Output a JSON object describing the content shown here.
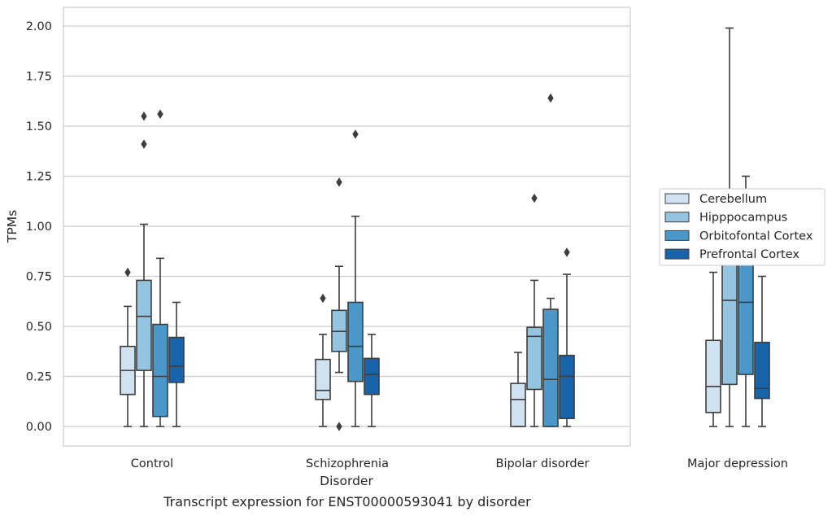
{
  "chart_data": {
    "type": "boxplot",
    "caption": "Transcript expression for ENST00000593041 by disorder",
    "xlabel": "Disorder",
    "ylabel": "TPMs",
    "ylim": [
      -0.1,
      2.1
    ],
    "yticks": [
      "0.00",
      "0.25",
      "0.50",
      "0.75",
      "1.00",
      "1.25",
      "1.50",
      "1.75",
      "2.00"
    ],
    "grid": "horizontal",
    "legend_position": "right",
    "categories": [
      "Control",
      "Schizophrenia",
      "Bipolar disorder",
      "Major depression"
    ],
    "series": [
      {
        "name": "Cerebellum",
        "color": "#d0e1f2",
        "boxes": [
          {
            "whisker_low": 0.0,
            "q1": 0.16,
            "median": 0.28,
            "q3": 0.4,
            "whisker_high": 0.6,
            "outliers": [
              0.77
            ]
          },
          {
            "whisker_low": 0.0,
            "q1": 0.135,
            "median": 0.18,
            "q3": 0.335,
            "whisker_high": 0.46,
            "outliers": [
              0.64
            ]
          },
          {
            "whisker_low": 0.0,
            "q1": 0.0,
            "median": 0.135,
            "q3": 0.215,
            "whisker_high": 0.37,
            "outliers": []
          },
          {
            "whisker_low": 0.0,
            "q1": 0.07,
            "median": 0.2,
            "q3": 0.43,
            "whisker_high": 0.77,
            "outliers": []
          }
        ]
      },
      {
        "name": "Hipppocampus",
        "color": "#94c4df",
        "boxes": [
          {
            "whisker_low": 0.0,
            "q1": 0.28,
            "median": 0.55,
            "q3": 0.73,
            "whisker_high": 1.01,
            "outliers": [
              1.41,
              1.55
            ]
          },
          {
            "whisker_low": 0.27,
            "q1": 0.375,
            "median": 0.475,
            "q3": 0.58,
            "whisker_high": 0.8,
            "outliers": [
              1.22,
              0.0
            ]
          },
          {
            "whisker_low": 0.0,
            "q1": 0.185,
            "median": 0.45,
            "q3": 0.495,
            "whisker_high": 0.73,
            "outliers": [
              1.14
            ]
          },
          {
            "whisker_low": 0.0,
            "q1": 0.21,
            "median": 0.63,
            "q3": 1.02,
            "whisker_high": 1.99,
            "outliers": []
          }
        ]
      },
      {
        "name": "Orbitofontal Cortex",
        "color": "#4a98c9",
        "boxes": [
          {
            "whisker_low": 0.0,
            "q1": 0.05,
            "median": 0.25,
            "q3": 0.51,
            "whisker_high": 0.84,
            "outliers": [
              1.56
            ]
          },
          {
            "whisker_low": 0.0,
            "q1": 0.225,
            "median": 0.4,
            "q3": 0.62,
            "whisker_high": 1.05,
            "outliers": [
              1.46
            ]
          },
          {
            "whisker_low": 0.0,
            "q1": 0.0,
            "median": 0.235,
            "q3": 0.585,
            "whisker_high": 0.64,
            "outliers": [
              1.64
            ]
          },
          {
            "whisker_low": 0.0,
            "q1": 0.26,
            "median": 0.62,
            "q3": 0.81,
            "whisker_high": 1.25,
            "outliers": []
          }
        ]
      },
      {
        "name": "Prefrontal Cortex",
        "color": "#1764ab",
        "boxes": [
          {
            "whisker_low": 0.0,
            "q1": 0.22,
            "median": 0.3,
            "q3": 0.445,
            "whisker_high": 0.62,
            "outliers": []
          },
          {
            "whisker_low": 0.0,
            "q1": 0.16,
            "median": 0.26,
            "q3": 0.34,
            "whisker_high": 0.46,
            "outliers": []
          },
          {
            "whisker_low": 0.0,
            "q1": 0.04,
            "median": 0.25,
            "q3": 0.355,
            "whisker_high": 0.76,
            "outliers": [
              0.87
            ]
          },
          {
            "whisker_low": 0.0,
            "q1": 0.14,
            "median": 0.19,
            "q3": 0.42,
            "whisker_high": 0.75,
            "outliers": []
          }
        ]
      }
    ]
  }
}
